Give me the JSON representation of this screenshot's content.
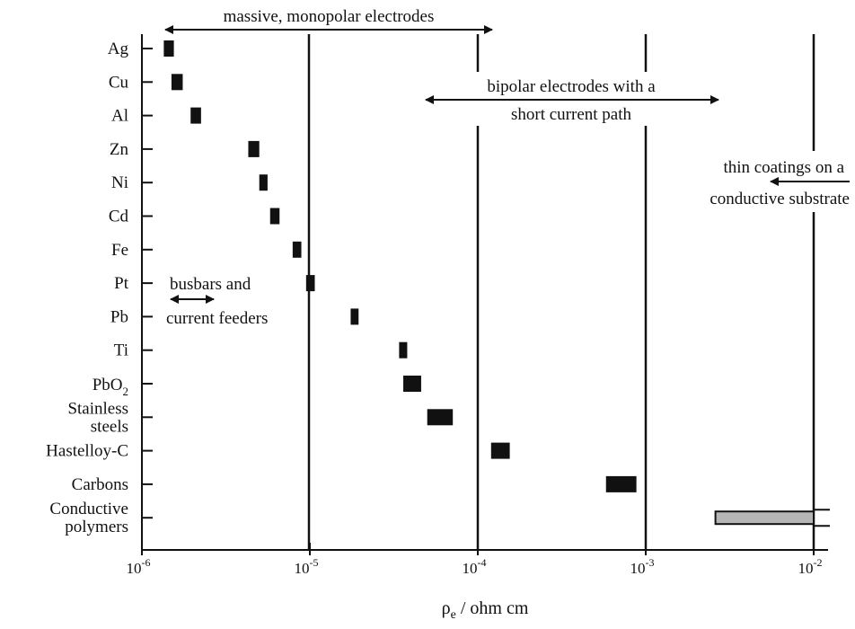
{
  "chart_data": {
    "type": "range-bar",
    "xscale": "log",
    "xlim_exponent": [
      -6,
      -2
    ],
    "x_ticks": [
      {
        "base": "10",
        "exp": "-6"
      },
      {
        "base": "10",
        "exp": "-5"
      },
      {
        "base": "10",
        "exp": "-4"
      },
      {
        "base": "10",
        "exp": "-3"
      },
      {
        "base": "10",
        "exp": "-2"
      }
    ],
    "xlabel": {
      "symbol": "ρ",
      "subscript": "e",
      "unit": " / ohm cm"
    },
    "categories": [
      {
        "label": [
          "Ag"
        ],
        "range": [
          1.35e-06,
          1.55e-06
        ]
      },
      {
        "label": [
          "Cu"
        ],
        "range": [
          1.5e-06,
          1.75e-06
        ]
      },
      {
        "label": [
          "Al"
        ],
        "range": [
          1.95e-06,
          2.25e-06
        ]
      },
      {
        "label": [
          "Zn"
        ],
        "range": [
          4.3e-06,
          5e-06
        ]
      },
      {
        "label": [
          "Ni"
        ],
        "range": [
          5e-06,
          5.6e-06
        ]
      },
      {
        "label": [
          "Cd"
        ],
        "range": [
          5.8e-06,
          6.6e-06
        ]
      },
      {
        "label": [
          "Fe"
        ],
        "range": [
          7.9e-06,
          8.9e-06
        ]
      },
      {
        "label": [
          "Pt"
        ],
        "range": [
          9.5e-06,
          1.07e-05
        ]
      },
      {
        "label": [
          "Pb"
        ],
        "range": [
          1.75e-05,
          1.95e-05
        ]
      },
      {
        "label": [
          "Ti"
        ],
        "range": [
          3.4e-05,
          3.8e-05
        ]
      },
      {
        "label": [
          "PbO",
          "2"
        ],
        "range": [
          3.6e-05,
          4.6e-05
        ],
        "subscript": true
      },
      {
        "label": [
          "Stainless",
          "steels"
        ],
        "range": [
          5e-05,
          7.1e-05
        ]
      },
      {
        "label": [
          "Hastelloy-C"
        ],
        "range": [
          0.00012,
          0.000155
        ]
      },
      {
        "label": [
          "Carbons"
        ],
        "range": [
          0.00058,
          0.00088
        ]
      },
      {
        "label": [
          "Conductive",
          "polymers"
        ],
        "range": [
          0.0026,
          0.01
        ],
        "shaded": true
      }
    ],
    "annotations": {
      "massive": "massive, monopolar electrodes",
      "bipolar": [
        "bipolar electrodes with a",
        "short current path"
      ],
      "thin": [
        "thin coatings on a",
        "conductive substrate"
      ],
      "busbars": [
        "busbars and",
        "current feeders"
      ]
    },
    "colors": {
      "bar": "#111111",
      "shaded_bar": "#b5b5b5",
      "line": "#111111"
    }
  }
}
